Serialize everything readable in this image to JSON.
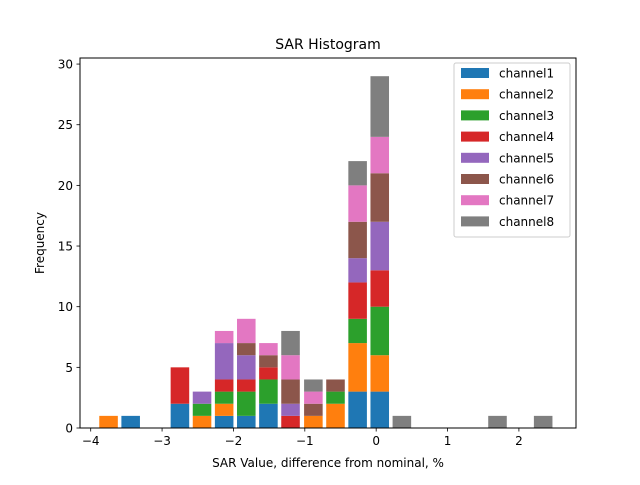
{
  "chart_data": {
    "type": "bar",
    "stacked": true,
    "title": "SAR Histogram",
    "xlabel": "SAR Value, difference from nominal, %",
    "ylabel": "Frequency",
    "xlim": [
      -4.15,
      2.8
    ],
    "ylim": [
      0,
      30.5
    ],
    "bar_width": 0.26,
    "xticks": [
      -4,
      -3,
      -2,
      -1,
      0,
      1,
      2
    ],
    "xtick_labels": [
      "−4",
      "−3",
      "−2",
      "−1",
      "0",
      "1",
      "2"
    ],
    "yticks": [
      0,
      5,
      10,
      15,
      20,
      25,
      30
    ],
    "ytick_labels": [
      "0",
      "5",
      "10",
      "15",
      "20",
      "25",
      "30"
    ],
    "legend_position": "top-right",
    "bin_centers": [
      -3.75,
      -3.44,
      -2.75,
      -2.44,
      -2.13,
      -1.82,
      -1.51,
      -1.2,
      -0.88,
      -0.57,
      -0.26,
      0.05,
      0.36,
      1.7,
      2.34
    ],
    "series": [
      {
        "name": "channel1",
        "color": "#1f77b4",
        "values": [
          0,
          1,
          2,
          0,
          1,
          1,
          2,
          0,
          0,
          0,
          3,
          3,
          0,
          0,
          0
        ]
      },
      {
        "name": "channel2",
        "color": "#ff7f0e",
        "values": [
          1,
          0,
          0,
          1,
          1,
          0,
          0,
          0,
          1,
          2,
          4,
          3,
          0,
          0,
          0
        ]
      },
      {
        "name": "channel3",
        "color": "#2ca02c",
        "values": [
          0,
          0,
          0,
          1,
          1,
          2,
          2,
          0,
          0,
          1,
          2,
          4,
          0,
          0,
          0
        ]
      },
      {
        "name": "channel4",
        "color": "#d62728",
        "values": [
          0,
          0,
          3,
          0,
          1,
          1,
          1,
          1,
          0,
          0,
          3,
          3,
          0,
          0,
          0
        ]
      },
      {
        "name": "channel5",
        "color": "#9467bd",
        "values": [
          0,
          0,
          0,
          1,
          3,
          2,
          0,
          1,
          0,
          0,
          2,
          4,
          0,
          0,
          0
        ]
      },
      {
        "name": "channel6",
        "color": "#8c564b",
        "values": [
          0,
          0,
          0,
          0,
          0,
          1,
          1,
          2,
          1,
          1,
          3,
          4,
          0,
          0,
          0
        ]
      },
      {
        "name": "channel7",
        "color": "#e377c2",
        "values": [
          0,
          0,
          0,
          0,
          1,
          2,
          1,
          2,
          1,
          0,
          3,
          3,
          0,
          0,
          0
        ]
      },
      {
        "name": "channel8",
        "color": "#7f7f7f",
        "values": [
          0,
          0,
          0,
          0,
          0,
          0,
          0,
          2,
          1,
          0,
          2,
          5,
          1,
          1,
          1
        ]
      }
    ]
  }
}
